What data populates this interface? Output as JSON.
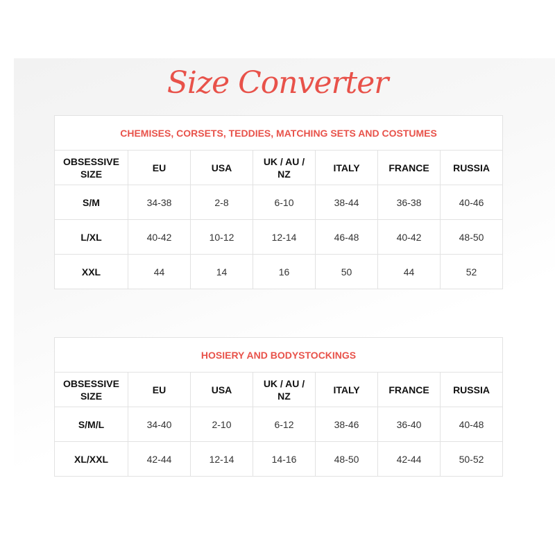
{
  "title": "Size Converter",
  "accent_color": "#e8524a",
  "tables": [
    {
      "caption": "CHEMISES, CORSETS, TEDDIES, MATCHING SETS AND COSTUMES",
      "headers": [
        "OBSESSIVE SIZE",
        "EU",
        "USA",
        "UK / AU / NZ",
        "ITALY",
        "FRANCE",
        "RUSSIA"
      ],
      "rows": [
        [
          "S/M",
          "34-38",
          "2-8",
          "6-10",
          "38-44",
          "36-38",
          "40-46"
        ],
        [
          "L/XL",
          "40-42",
          "10-12",
          "12-14",
          "46-48",
          "40-42",
          "48-50"
        ],
        [
          "XXL",
          "44",
          "14",
          "16",
          "50",
          "44",
          "52"
        ]
      ]
    },
    {
      "caption": "HOSIERY AND BODYSTOCKINGS",
      "headers": [
        "OBSESSIVE SIZE",
        "EU",
        "USA",
        "UK / AU / NZ",
        "ITALY",
        "FRANCE",
        "RUSSIA"
      ],
      "rows": [
        [
          "S/M/L",
          "34-40",
          "2-10",
          "6-12",
          "38-46",
          "36-40",
          "40-48"
        ],
        [
          "XL/XXL",
          "42-44",
          "12-14",
          "14-16",
          "48-50",
          "42-44",
          "50-52"
        ]
      ]
    }
  ]
}
